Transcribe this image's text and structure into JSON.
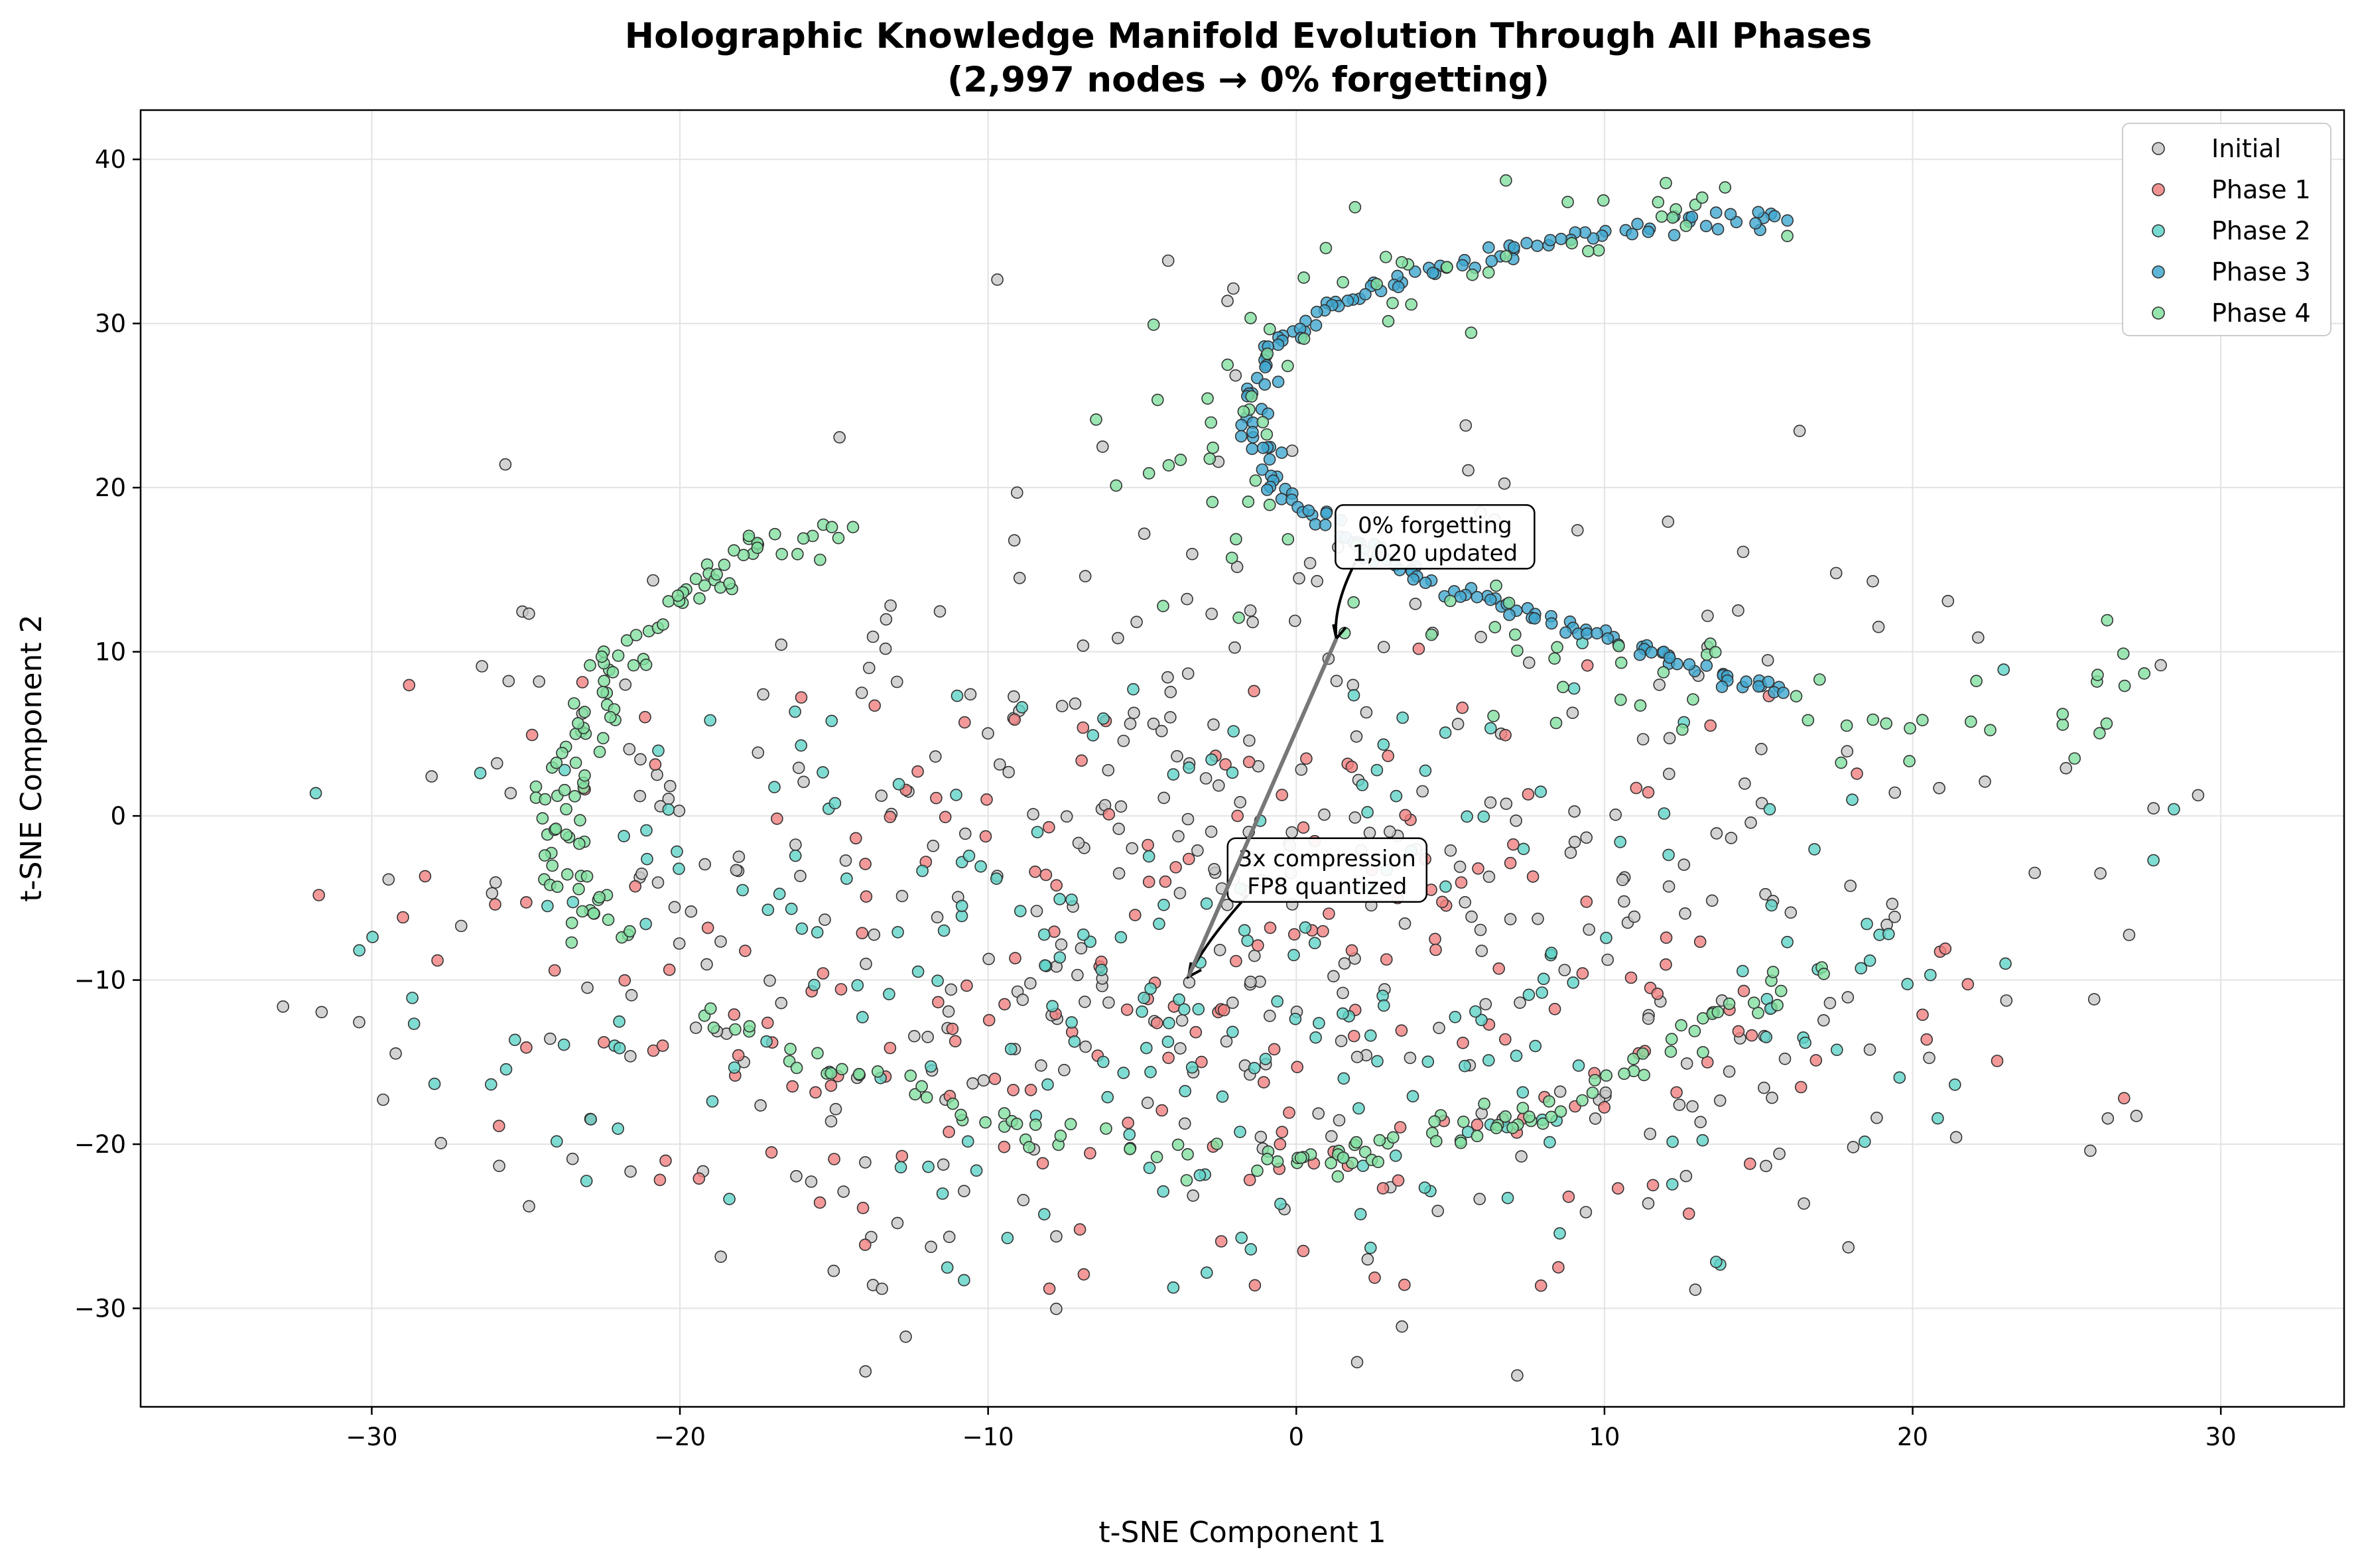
{
  "chart_data": {
    "type": "scatter",
    "title_line1": "Holographic Knowledge Manifold Evolution Through All Phases",
    "title_line2": "(2,997 nodes → 0% forgetting)",
    "xlabel": "t-SNE Component 1",
    "ylabel": "t-SNE Component 2",
    "xlim": [
      -37.5,
      34
    ],
    "ylim": [
      -36,
      43
    ],
    "xticks": [
      -30,
      -20,
      -10,
      0,
      10,
      20,
      30
    ],
    "yticks": [
      -30,
      -20,
      -10,
      0,
      10,
      20,
      30,
      40
    ],
    "xtick_labels": [
      "−30",
      "−20",
      "−10",
      "0",
      "10",
      "20",
      "30"
    ],
    "ytick_labels": [
      "−30",
      "−20",
      "−10",
      "0",
      "10",
      "20",
      "30",
      "40"
    ],
    "grid": true,
    "legend_position": "top-right",
    "series": [
      {
        "name": "Initial",
        "color": "#c8c8c8",
        "shape": "scattered-ellipse",
        "center": [
          -2,
          -4
        ],
        "spread": [
          16,
          14
        ],
        "count": 420
      },
      {
        "name": "Phase 1",
        "color": "#f08080",
        "shape": "lower-band",
        "center": [
          -3,
          -10
        ],
        "spread": [
          14,
          10
        ],
        "count": 230
      },
      {
        "name": "Phase 2",
        "color": "#5fd3c8",
        "shape": "lower-band",
        "center": [
          -3,
          -10
        ],
        "spread": [
          14,
          10
        ],
        "count": 250
      },
      {
        "name": "Phase 3",
        "color": "#40a8d0",
        "shape": "arc-curve",
        "path": [
          [
            16,
            36.5
          ],
          [
            12,
            36
          ],
          [
            8,
            35
          ],
          [
            4,
            33
          ],
          [
            1,
            31
          ],
          [
            -1,
            28
          ],
          [
            -1.3,
            24
          ],
          [
            -0.5,
            20
          ],
          [
            1.5,
            17
          ],
          [
            4,
            14.5
          ],
          [
            7,
            12.5
          ],
          [
            10,
            11
          ],
          [
            13,
            9
          ],
          [
            16,
            7.5
          ]
        ],
        "count": 200
      },
      {
        "name": "Phase 4",
        "color": "#82e0a0",
        "shape": "arc-curves",
        "paths": [
          [
            [
              17,
              37.5
            ],
            [
              12,
              37
            ],
            [
              7,
              36
            ],
            [
              3,
              33
            ],
            [
              -1,
              29
            ],
            [
              -3,
              25
            ],
            [
              -3,
              20
            ],
            [
              0,
              16
            ],
            [
              5,
              12
            ],
            [
              10,
              9
            ],
            [
              15,
              7
            ],
            [
              20,
              6
            ],
            [
              25,
              7.5
            ],
            [
              28,
              10
            ]
          ],
          [
            [
              -15.5,
              17.5
            ],
            [
              -18,
              15.5
            ],
            [
              -20.5,
              12.5
            ],
            [
              -22.5,
              8
            ],
            [
              -23.5,
              3
            ],
            [
              -24,
              -1
            ],
            [
              -23.5,
              -5
            ],
            [
              -22,
              -8
            ]
          ],
          [
            [
              -20,
              -11
            ],
            [
              -16,
              -15
            ],
            [
              -12,
              -17.5
            ],
            [
              -8,
              -19.5
            ],
            [
              -4,
              -20
            ],
            [
              -1,
              -21
            ],
            [
              2,
              -20.5
            ],
            [
              5,
              -19
            ],
            [
              8,
              -18.5
            ],
            [
              11,
              -15
            ],
            [
              14,
              -11.5
            ],
            [
              17,
              -9
            ]
          ]
        ],
        "count": 340
      }
    ],
    "annotations": [
      {
        "text_line1": "0% forgetting",
        "text_line2": "1,020 updated",
        "text_at": [
          4.5,
          17
        ],
        "arrow_to": [
          1.3,
          10.8
        ]
      },
      {
        "text_line1": "3x compression",
        "text_line2": "FP8 quantized",
        "text_at": [
          1,
          -3.3
        ],
        "arrow_to": [
          -3.5,
          -9.8
        ]
      }
    ]
  }
}
